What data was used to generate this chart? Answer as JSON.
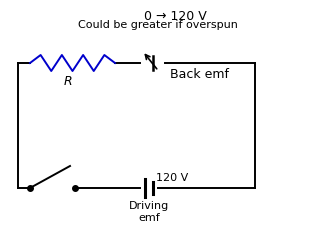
{
  "bg_color": "#ffffff",
  "circuit_color": "#000000",
  "resistor_color": "#0000cc",
  "title_line1": "0 → 120 V",
  "title_line2": "Could be greater if overspun",
  "label_R": "R",
  "label_back_emf": "Back emf",
  "label_driving_emf": "Driving\nemf",
  "label_voltage": "120 V",
  "title_fontsize": 9,
  "label_fontsize": 9
}
